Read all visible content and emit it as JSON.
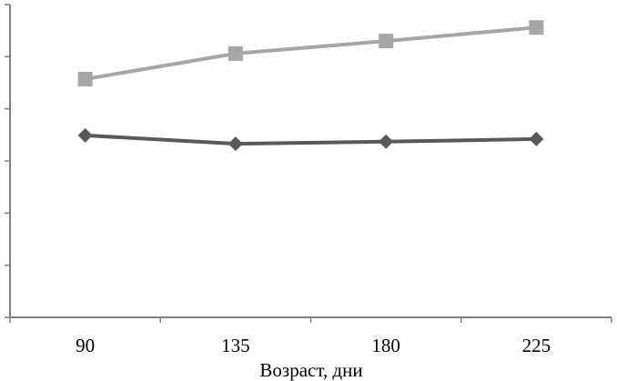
{
  "chart_data": {
    "type": "line",
    "title": "",
    "xlabel": "Возраст, дни",
    "ylabel": "",
    "categories": [
      "90",
      "135",
      "180",
      "225"
    ],
    "ylim": [
      0,
      6
    ],
    "y_tick_count": 6,
    "y_tick_labels_shown": false,
    "grid": false,
    "series": [
      {
        "values": [
          4.57,
          5.06,
          5.3,
          5.56
        ],
        "color": "#a6a6a6",
        "marker": "square"
      },
      {
        "values": [
          3.49,
          3.33,
          3.37,
          3.42
        ],
        "color": "#595959",
        "marker": "diamond"
      }
    ]
  }
}
